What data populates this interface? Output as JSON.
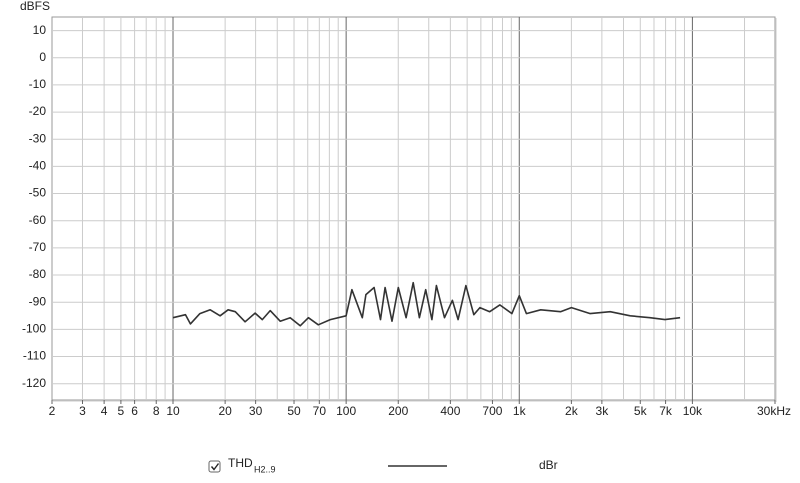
{
  "chart_data": {
    "type": "line",
    "y_label": "dBFS",
    "x": [
      10,
      11.8,
      12.6,
      14.3,
      16.4,
      18.7,
      20.8,
      22.9,
      26.1,
      29.8,
      32.8,
      36.4,
      41.6,
      47.5,
      54.3,
      60.5,
      69.1,
      81,
      100,
      108,
      124,
      130,
      145,
      158,
      168,
      184,
      200,
      222,
      244,
      265,
      288,
      313,
      332,
      370,
      411,
      443,
      492,
      546,
      592,
      675,
      772,
      907,
      1000,
      1100,
      1330,
      1730,
      2000,
      2570,
      3350,
      4370,
      5690,
      6940,
      8490
    ],
    "series": [
      {
        "name": "THD",
        "name_sub": "H2..9",
        "color": "#333333",
        "values": [
          -95.7,
          -94.6,
          -98,
          -94.2,
          -92.8,
          -95,
          -92.8,
          -93.5,
          -97.2,
          -94,
          -96.4,
          -93.1,
          -97,
          -95.7,
          -98.7,
          -95.7,
          -98.3,
          -96.4,
          -95,
          -85.4,
          -95.7,
          -87.2,
          -84.6,
          -96.4,
          -84.6,
          -97,
          -84.6,
          -95.7,
          -82.8,
          -95.7,
          -85.4,
          -96.4,
          -83.9,
          -95.7,
          -89.3,
          -96.4,
          -83.9,
          -94.6,
          -92,
          -93.5,
          -91,
          -94.2,
          -87.6,
          -94.2,
          -92.8,
          -93.5,
          -92,
          -94.2,
          -93.5,
          -95,
          -95.7,
          -96.4,
          -95.7
        ]
      }
    ],
    "legend_line_label": "dBr",
    "log_x": true,
    "grid": true,
    "xlim": [
      2,
      30000
    ],
    "ylim": [
      -126,
      15
    ],
    "xticks": [
      2,
      3,
      4,
      5,
      6,
      8,
      10,
      20,
      30,
      50,
      70,
      100,
      200,
      400,
      700,
      {
        "value": 1000,
        "label": "1k"
      },
      {
        "value": 2000,
        "label": "2k"
      },
      {
        "value": 3000,
        "label": "3k"
      },
      {
        "value": 5000,
        "label": "5k"
      },
      {
        "value": 7000,
        "label": "7k"
      },
      {
        "value": 10000,
        "label": "10k"
      },
      {
        "value": 30000,
        "label": "30kHz"
      }
    ],
    "yticks": [
      10,
      0,
      -10,
      -20,
      -30,
      -40,
      -50,
      -60,
      -70,
      -80,
      -90,
      -100,
      -110,
      -120
    ]
  }
}
